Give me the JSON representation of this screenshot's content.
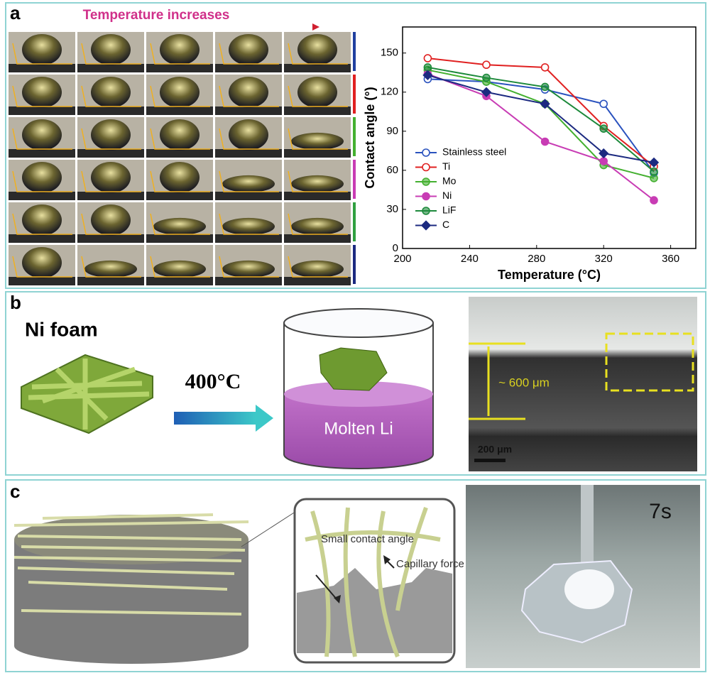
{
  "panel_a": {
    "label": "a",
    "banner": "Temperature increases"
  },
  "panel_b": {
    "label": "b",
    "foam_label": "Ni foam",
    "arrow_label": "400°C",
    "crucible_label": "Molten Li",
    "thickness_label": "~ 600 μm",
    "scale_bar": "200 μm"
  },
  "panel_c": {
    "label": "c",
    "callout_left": "Small contact angle",
    "callout_right": "Capillary force",
    "time_label": "7s"
  },
  "chart_data": {
    "type": "line",
    "x_label": "Temperature (°C)",
    "y_label": "Contact angle (°)",
    "xlim": [
      200,
      375
    ],
    "ylim": [
      0,
      170
    ],
    "xticks": [
      200,
      240,
      280,
      320,
      360
    ],
    "yticks": [
      0,
      30,
      60,
      90,
      120,
      150
    ],
    "legend_position": "lower left",
    "x": [
      215,
      250,
      285,
      320,
      350
    ],
    "series": [
      {
        "name": "Stainless steel",
        "color": "#2a52be",
        "marker": "open",
        "values": [
          130,
          128,
          122,
          111,
          58
        ]
      },
      {
        "name": "Ti",
        "color": "#e02020",
        "marker": "open",
        "values": [
          146,
          141,
          139,
          94,
          63
        ]
      },
      {
        "name": "Mo",
        "color": "#44b030",
        "marker": "half",
        "values": [
          137,
          128,
          111,
          64,
          54
        ]
      },
      {
        "name": "Ni",
        "color": "#c83cb4",
        "marker": "filled",
        "values": [
          134,
          117,
          82,
          67,
          37
        ]
      },
      {
        "name": "LiF",
        "color": "#1e8a3c",
        "marker": "half",
        "values": [
          139,
          131,
          124,
          92,
          59
        ]
      },
      {
        "name": "C",
        "color": "#1c2a80",
        "marker": "diamond",
        "values": [
          133,
          120,
          111,
          73,
          66
        ]
      }
    ]
  }
}
